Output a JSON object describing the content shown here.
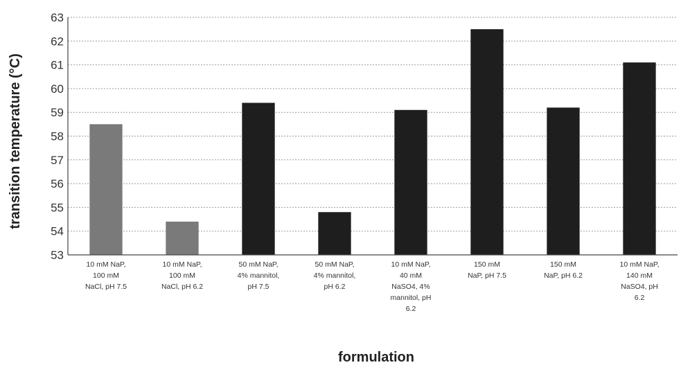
{
  "chart_data": {
    "type": "bar",
    "title": "",
    "xlabel": "formulation",
    "ylabel": "transition temperature (°C)",
    "ylim": [
      53,
      63
    ],
    "yticks": [
      53,
      54,
      55,
      56,
      57,
      58,
      59,
      60,
      61,
      62,
      63
    ],
    "grid": true,
    "categories": [
      [
        "10 mM NaP,",
        "100 mM",
        "NaCl, pH 7.5"
      ],
      [
        "10 mM NaP,",
        "100 mM",
        "NaCl, pH 6.2"
      ],
      [
        "50 mM NaP,",
        "4% mannitol,",
        "pH 7.5"
      ],
      [
        "50 mM NaP,",
        "4% mannitol,",
        "pH 6.2"
      ],
      [
        "10 mM NaP,",
        "40 mM",
        "NaSO4, 4%",
        "mannitol, pH",
        "6.2"
      ],
      [
        "150 mM",
        "NaP, pH 7.5"
      ],
      [
        "150 mM",
        "NaP, pH 6.2"
      ],
      [
        "10 mM NaP,",
        "140 mM",
        "NaSO4, pH",
        "6.2"
      ]
    ],
    "values": [
      58.5,
      54.4,
      59.4,
      54.8,
      59.1,
      62.5,
      59.2,
      61.1
    ],
    "bar_colors": [
      "#7a7a7a",
      "#7a7a7a",
      "#1e1e1e",
      "#1e1e1e",
      "#1e1e1e",
      "#1e1e1e",
      "#1e1e1e",
      "#1e1e1e"
    ]
  }
}
